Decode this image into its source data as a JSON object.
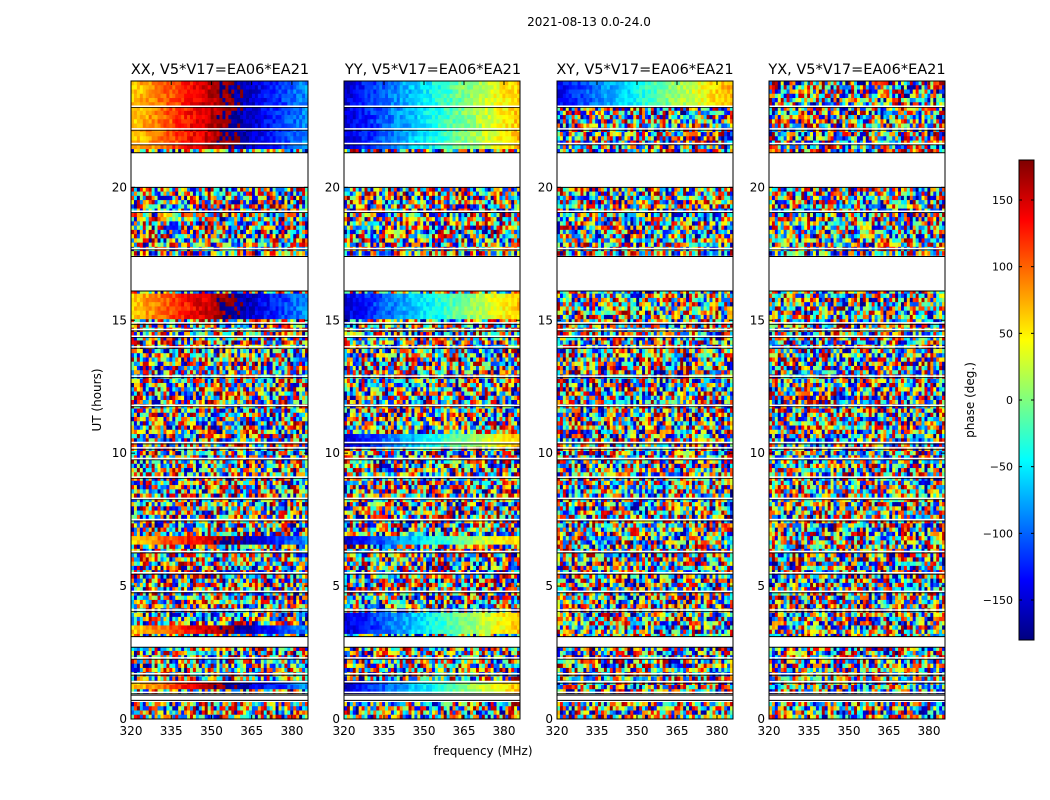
{
  "figure": {
    "title": "2021-08-13 0.0-24.0",
    "xlabel": "frequency (MHz)",
    "ylabel": "UT (hours)"
  },
  "colorbar": {
    "label": "phase (deg.)",
    "range": [
      -180,
      180
    ],
    "ticks": [
      -150,
      -100,
      -50,
      0,
      50,
      100,
      150
    ],
    "tick_labels": [
      "−150",
      "−100",
      "−50",
      "0",
      "50",
      "100",
      "150"
    ],
    "colormap": "jet",
    "colormap_stops": [
      "#00007f",
      "#0000ff",
      "#007fff",
      "#00ffff",
      "#7fff7f",
      "#ffff00",
      "#ff7f00",
      "#ff0000",
      "#7f0000"
    ]
  },
  "chart_data": {
    "type": "heatmap",
    "x": {
      "name": "frequency (MHz)",
      "range": [
        320,
        386
      ],
      "ticks": [
        320,
        335,
        350,
        365,
        380
      ]
    },
    "y": {
      "name": "UT (hours)",
      "range": [
        0,
        24
      ],
      "ticks": [
        0,
        5,
        10,
        15,
        20
      ]
    },
    "value": {
      "name": "phase (deg.)",
      "range": [
        -180,
        180
      ]
    },
    "panels": [
      {
        "title": "XX, V5*V17=EA06*EA21",
        "correlation": "XX",
        "coherent_phase_hours": [
          [
            21.5,
            24.0
          ],
          [
            15.0,
            16.0
          ],
          [
            6.5,
            6.9
          ],
          [
            3.2,
            3.6
          ],
          [
            1.1,
            1.5
          ]
        ],
        "coherent_phase_offset": 60
      },
      {
        "title": "YY, V5*V17=EA06*EA21",
        "correlation": "YY",
        "coherent_phase_hours": [
          [
            21.5,
            24.0
          ],
          [
            15.0,
            16.0
          ],
          [
            10.3,
            10.7
          ],
          [
            6.5,
            6.9
          ],
          [
            3.2,
            4.0
          ],
          [
            1.0,
            1.5
          ]
        ],
        "coherent_phase_offset": -150
      },
      {
        "title": "XY, V5*V17=EA06*EA21",
        "correlation": "XY",
        "coherent_phase_hours": [
          [
            23.0,
            24.0
          ]
        ],
        "coherent_phase_offset": -140
      },
      {
        "title": "YX, V5*V17=EA06*EA21",
        "correlation": "YX",
        "coherent_phase_hours": [],
        "coherent_phase_offset": 0
      }
    ],
    "data_gaps_hours": [
      [
        21.3,
        20.0
      ],
      [
        17.4,
        16.1
      ],
      [
        3.1,
        2.7
      ],
      [
        0.9,
        0.7
      ]
    ],
    "flagged_lines_hours": [
      23.05,
      22.2,
      21.65,
      19.1,
      17.7,
      14.9,
      14.65,
      14.4,
      14.0,
      12.9,
      11.8,
      10.4,
      10.2,
      9.8,
      9.1,
      8.3,
      7.5,
      6.3,
      5.5,
      4.8,
      4.1,
      2.3,
      1.7,
      1.4,
      1.0
    ]
  }
}
